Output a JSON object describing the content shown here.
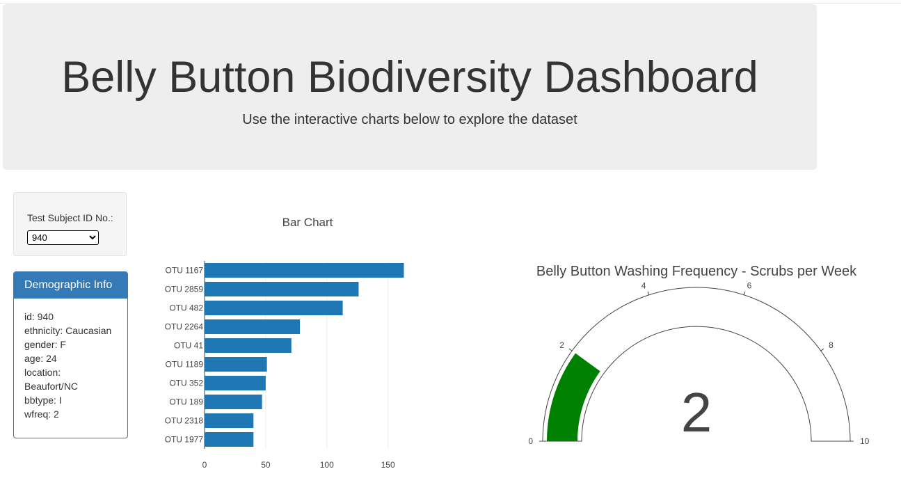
{
  "header": {
    "title": "Belly Button Biodiversity Dashboard",
    "subtitle": "Use the interactive charts below to explore the dataset"
  },
  "selector": {
    "label": "Test Subject ID No.:",
    "selected_value": "940"
  },
  "demographics": {
    "title": "Demographic Info",
    "lines": [
      "id: 940",
      "ethnicity: Caucasian",
      "gender: F",
      "age: 24",
      "location:",
      "Beaufort/NC",
      "bbtype: I",
      "wfreq: 2"
    ]
  },
  "colors": {
    "bar": "#1f77b4",
    "gauge_fill": "#008000",
    "panel_blue": "#337ab7"
  },
  "chart_data": [
    {
      "type": "bar",
      "orientation": "horizontal",
      "title": "Bar Chart",
      "categories": [
        "OTU 1167",
        "OTU 2859",
        "OTU 482",
        "OTU 2264",
        "OTU 41",
        "OTU 1189",
        "OTU 352",
        "OTU 189",
        "OTU 2318",
        "OTU 1977"
      ],
      "values": [
        163,
        126,
        113,
        78,
        71,
        51,
        50,
        47,
        40,
        40
      ],
      "xlim": [
        0,
        165
      ],
      "xticks": [
        0,
        50,
        100,
        150
      ],
      "xlabel": "",
      "ylabel": ""
    },
    {
      "type": "gauge",
      "title": "Belly Button Washing Frequency -  Scrubs per Week",
      "value": 2,
      "range": [
        0,
        10
      ],
      "ticks": [
        0,
        2,
        4,
        6,
        8,
        10
      ]
    }
  ]
}
